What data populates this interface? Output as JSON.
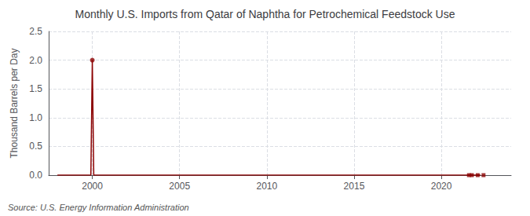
{
  "chart_data": {
    "type": "line",
    "title": "Monthly U.S. Imports from Qatar of Naphtha for Petrochemical Feedstock Use",
    "ylabel": "Thousand Barrels per Day",
    "annotation": "Source: U.S. Energy Information Administration",
    "xlim": [
      1997.5,
      2024
    ],
    "xticks": [
      2000,
      2005,
      2010,
      2015,
      2020
    ],
    "ylim": [
      0,
      2.5
    ],
    "yticks": [
      {
        "value": 0.0,
        "label": "0.0"
      },
      0.5,
      {
        "value": 1.0,
        "label": "1.0"
      },
      1.5,
      {
        "value": 2.0,
        "label": "2.0"
      },
      2.5
    ],
    "grid": true,
    "series": [
      {
        "type": "line",
        "color": "#8b0000",
        "x": [
          1998.0,
          1998.083,
          1998.167,
          1998.25,
          1998.333,
          1998.417,
          1998.5,
          1998.583,
          1998.667,
          1998.75,
          1998.833,
          1998.917,
          1999.0,
          1999.083,
          1999.167,
          1999.25,
          1999.333,
          1999.417,
          1999.5,
          1999.583,
          1999.667,
          1999.75,
          1999.833,
          1999.917,
          2000.0,
          2000.083,
          2000.167,
          2000.25,
          2000.333,
          2000.417,
          2000.5,
          2000.583,
          2000.667,
          2000.75,
          2000.833,
          2000.917,
          2021.583,
          2021.667,
          2022.083,
          2022.167,
          2022.25
        ],
        "values": [
          0.0,
          0.0,
          0.0,
          0.0,
          0.0,
          0.0,
          0.0,
          0.0,
          0.0,
          0.0,
          0.0,
          0.0,
          0.0,
          0.0,
          0.0,
          0.0,
          0.0,
          0.0,
          0.0,
          0.0,
          0.0,
          0.0,
          0.0,
          0.0,
          2.0,
          0.0,
          0.0,
          0.0,
          0.0,
          0.0,
          0.0,
          0.0,
          0.0,
          0.0,
          0.0,
          0.0,
          0.0,
          0.0,
          0.0,
          0.0,
          0.0
        ]
      },
      {
        "type": "scatter",
        "marker": "circle",
        "color": "#8b0000",
        "x": [
          2000.0
        ],
        "values": [
          2.0
        ]
      },
      {
        "type": "scatter",
        "marker": "square",
        "color": "#8b0000",
        "x": [
          2021.583,
          2021.75,
          2022.083,
          2022.417
        ],
        "values": [
          0.0,
          0.0,
          0.0,
          0.0
        ]
      }
    ]
  }
}
